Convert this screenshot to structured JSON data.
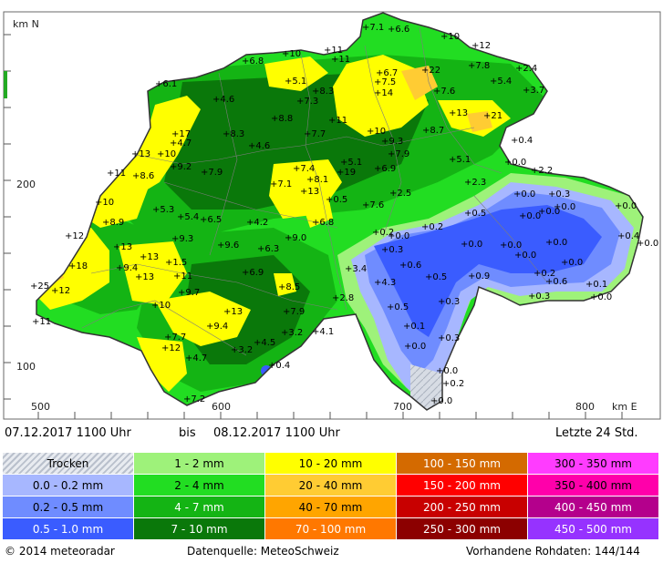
{
  "map": {
    "axis_labels": {
      "north": "km N",
      "east": "km E"
    },
    "y_ticks": [
      "200",
      "100"
    ],
    "x_ticks": [
      "500",
      "600",
      "700",
      "800"
    ],
    "measurement_labels": [
      "+7.1",
      "+6.6",
      "+10",
      "+12",
      "+6.8",
      "+10",
      "+11",
      "+11",
      "+6.7",
      "+22",
      "+7.8",
      "+2.4",
      "+6.1",
      "+5.1",
      "+7.5",
      "+5.4",
      "+3.7",
      "+4.6",
      "+8.3",
      "+7.3",
      "+14",
      "+7.6",
      "+8.8",
      "+11",
      "+13",
      "+21",
      "+17",
      "+8.3",
      "+10",
      "+8.7",
      "+4.7",
      "+4.6",
      "+7.7",
      "+9.3",
      "+0.4",
      "+13",
      "+10",
      "+9.2",
      "+5.1",
      "+7.9",
      "+5.1",
      "+0.0",
      "+11",
      "+8.6",
      "+7.9",
      "+7.4",
      "+8.1",
      "+19",
      "+6.9",
      "+2.2",
      "+13",
      "+7.1",
      "+2.3",
      "+0.3",
      "+10",
      "+0.5",
      "+2.5",
      "+0.0",
      "+0.0",
      "+5.3",
      "+7.6",
      "+0.0",
      "+0.0",
      "+8.9",
      "+5.4",
      "+6.5",
      "+4.2",
      "+6.8",
      "+0.2",
      "+0.2",
      "+0.5",
      "+0.0",
      "+0.4",
      "+0.0",
      "+12",
      "+9.3",
      "+9.0",
      "+0.0",
      "+0.0",
      "+0.0",
      "+13",
      "+9.6",
      "+6.3",
      "+0.3",
      "+0.0",
      "+18",
      "+9.4",
      "+13",
      "+1.5",
      "+3.4",
      "+0.6",
      "+0.0",
      "+0.0",
      "+25",
      "+12",
      "+13",
      "+11",
      "+6.9",
      "+8.5",
      "+4.3",
      "+0.5",
      "+0.9",
      "+0.2",
      "+0.6",
      "+0.1",
      "+0.0",
      "+0.3",
      "+9.7",
      "+2.8",
      "+0.3",
      "+13",
      "+7.9",
      "+0.5",
      "+11",
      "+10",
      "+9.4",
      "+3.2",
      "+4.1",
      "+0.1",
      "+0.3",
      "+7.7",
      "+12",
      "+4.5",
      "+3.2",
      "+4.7",
      "+0.0",
      "+0.0",
      "+0.4",
      "+0.2",
      "+7.2",
      "+0.0"
    ]
  },
  "period": {
    "from": "07.12.2017 1100 Uhr",
    "separator": "bis",
    "to": "08.12.2017 1100 Uhr",
    "window": "Letzte 24 Std."
  },
  "legend": {
    "rows": [
      [
        {
          "label": "Trocken",
          "color": "#cfd5df"
        },
        {
          "label": "1 - 2 mm",
          "color": "#9ef27a"
        },
        {
          "label": "10 - 20 mm",
          "color": "#ffff00"
        },
        {
          "label": "100 - 150 mm",
          "color": "#d46a00"
        },
        {
          "label": "300 - 350 mm",
          "color": "#ff3cff"
        }
      ],
      [
        {
          "label": "0.0 - 0.2 mm",
          "color": "#a7b7ff"
        },
        {
          "label": "2 - 4 mm",
          "color": "#22dd22"
        },
        {
          "label": "20 - 40 mm",
          "color": "#ffcc33"
        },
        {
          "label": "150 - 200 mm",
          "color": "#ff0000"
        },
        {
          "label": "350 - 400 mm",
          "color": "#ff00aa"
        }
      ],
      [
        {
          "label": "0.2 - 0.5 mm",
          "color": "#6f8cff"
        },
        {
          "label": "4 - 7 mm",
          "color": "#14b414"
        },
        {
          "label": "40 - 70 mm",
          "color": "#ffa500"
        },
        {
          "label": "200 - 250 mm",
          "color": "#c80000"
        },
        {
          "label": "400 - 450 mm",
          "color": "#b4008c"
        }
      ],
      [
        {
          "label": "0.5 - 1.0 mm",
          "color": "#3a5cff"
        },
        {
          "label": "7 - 10 mm",
          "color": "#0a780a"
        },
        {
          "label": "70 - 100 mm",
          "color": "#ff7800"
        },
        {
          "label": "250 - 300 mm",
          "color": "#8c0000"
        },
        {
          "label": "450 - 500 mm",
          "color": "#9632ff"
        }
      ]
    ]
  },
  "footer": {
    "copyright": "© 2014 meteoradar",
    "source": "Datenquelle: MeteoSchweiz",
    "raw_data": "Vorhandene Rohdaten: 144/144"
  }
}
